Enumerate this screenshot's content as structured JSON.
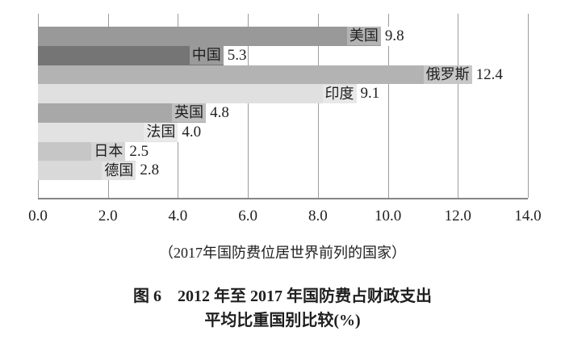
{
  "chart_data": {
    "type": "bar",
    "orientation": "horizontal",
    "categories": [
      "美国",
      "中国",
      "俄罗斯",
      "印度",
      "英国",
      "法国",
      "日本",
      "德国"
    ],
    "values": [
      9.8,
      5.3,
      12.4,
      9.1,
      4.8,
      4.0,
      2.5,
      2.8
    ],
    "value_labels": [
      "9.8",
      "5.3",
      "12.4",
      "9.1",
      "4.8",
      "4.0",
      "2.5",
      "2.8"
    ],
    "bar_colors": [
      "#999999",
      "#757575",
      "#b3b3b3",
      "#e0e0e0",
      "#a8a8a8",
      "#e2e2e2",
      "#c6c6c6",
      "#d9d9d9"
    ],
    "xlim": [
      0,
      14
    ],
    "x_ticks": [
      "0.0",
      "2.0",
      "4.0",
      "6.0",
      "8.0",
      "10.0",
      "12.0",
      "14.0"
    ],
    "grid": true,
    "legend": "none",
    "caption": "（2017年国防费位居世界前列的国家）",
    "title_line1": "图 6　2012 年至 2017 年国防费占财政支出",
    "title_line2": "平均比重国别比较(%)"
  },
  "colors": {
    "gridline": "#9c9c9c",
    "axis_line": "#868686",
    "text": "#1f1f1f",
    "background": "#ffffff"
  }
}
